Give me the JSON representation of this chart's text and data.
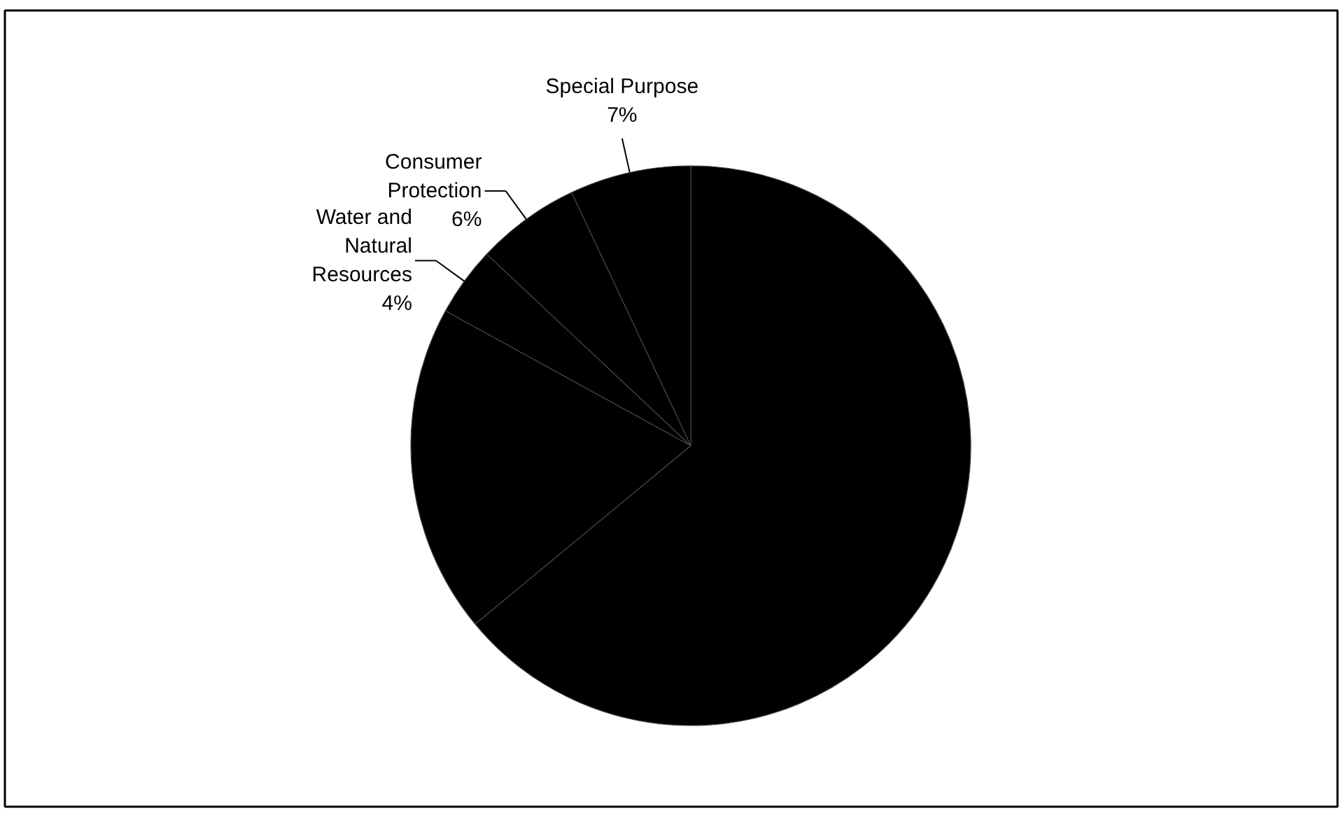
{
  "chart_data": {
    "type": "pie",
    "categories": [
      null,
      null,
      "Water and Natural Resources",
      "Consumer Protection",
      "Special Purpose"
    ],
    "values": [
      64,
      19,
      4,
      6,
      7
    ],
    "colors": [
      "#000000",
      "#000000",
      "#000000",
      "#000000",
      "#000000"
    ],
    "value_labels": [
      null,
      null,
      "4%",
      "6%",
      "7%"
    ]
  }
}
